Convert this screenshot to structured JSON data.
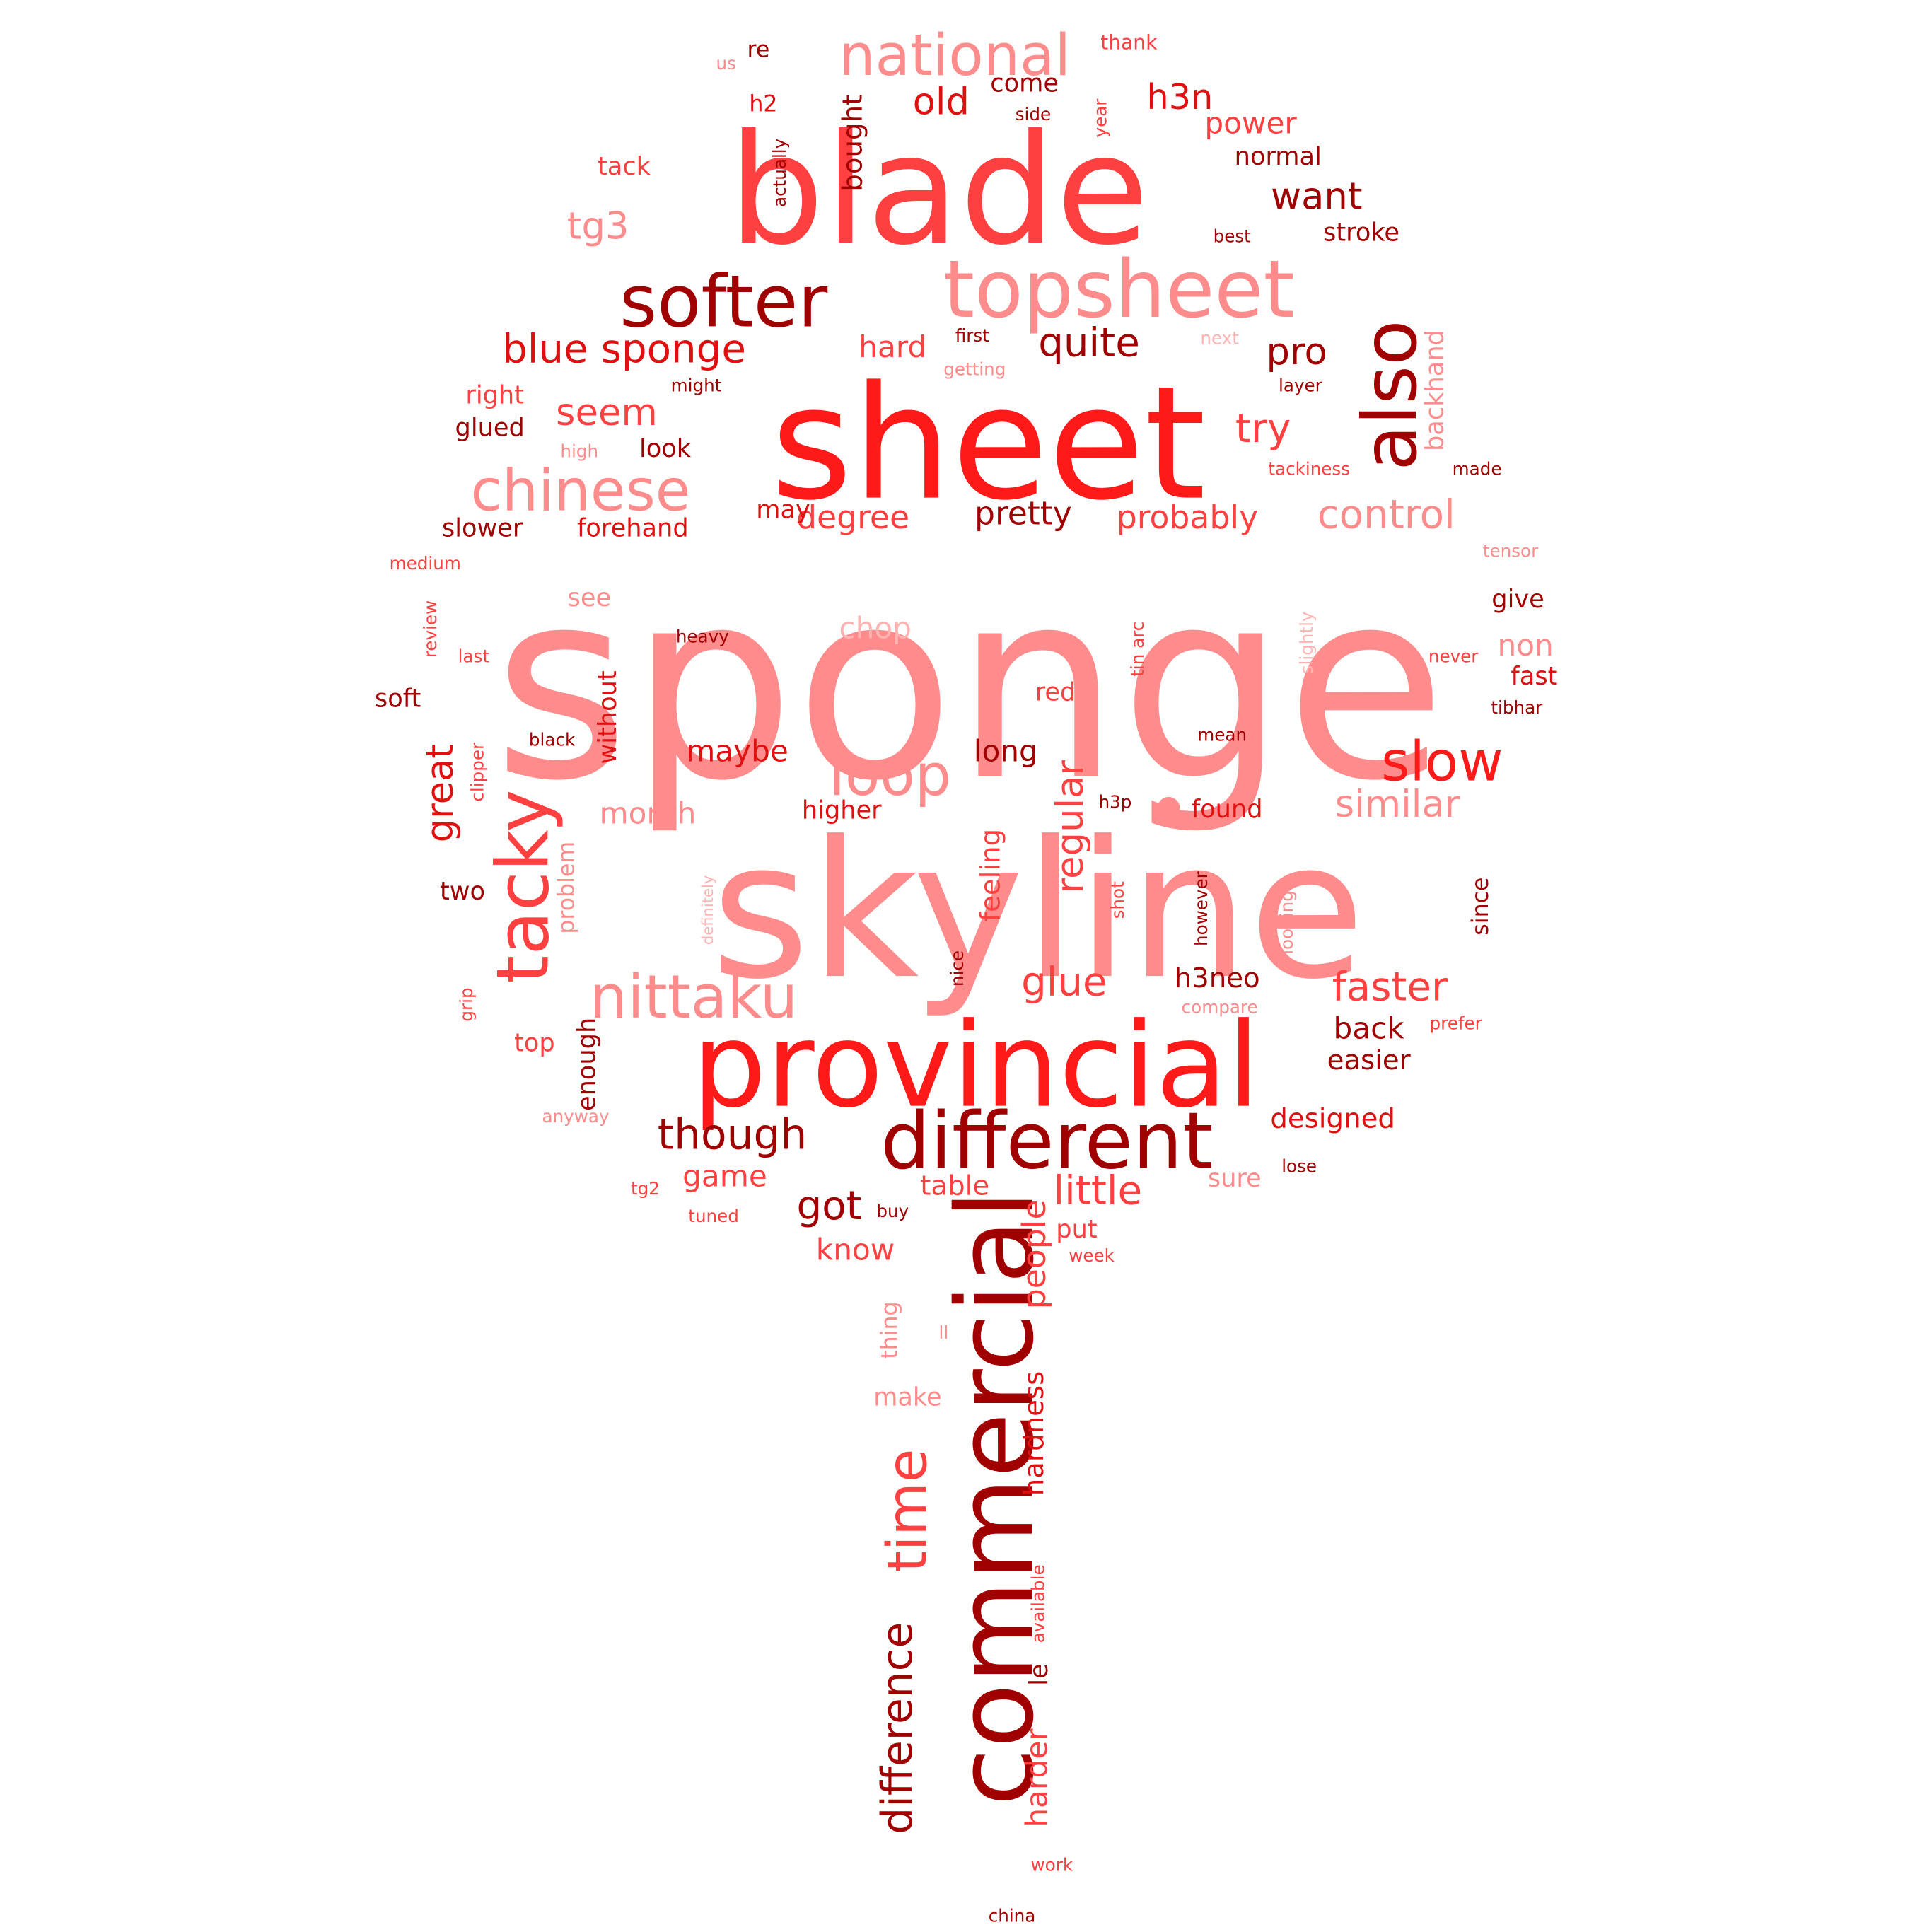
{
  "palette": {
    "dark": "#a00000",
    "mid": "#e01010",
    "bright": "#ff1a1a",
    "warm": "#ff4040",
    "light": "#ff8c8c",
    "pale": "#ffb4b4",
    "background": "#ffffff"
  },
  "words": [
    {
      "text": "sponge",
      "color": "light"
    },
    {
      "text": "skyline",
      "color": "light"
    },
    {
      "text": "sheet",
      "color": "bright"
    },
    {
      "text": "blade",
      "color": "warm"
    },
    {
      "text": "provincial",
      "color": "bright"
    },
    {
      "text": "commercial",
      "color": "dark"
    },
    {
      "text": "topsheet",
      "color": "light"
    },
    {
      "text": "different",
      "color": "dark"
    },
    {
      "text": "softer",
      "color": "dark"
    },
    {
      "text": "also",
      "color": "dark"
    },
    {
      "text": "national",
      "color": "light"
    },
    {
      "text": "tacky",
      "color": "warm"
    },
    {
      "text": "nittaku",
      "color": "light"
    },
    {
      "text": "chinese",
      "color": "light"
    },
    {
      "text": "loop",
      "color": "light"
    },
    {
      "text": "slow",
      "color": "bright"
    },
    {
      "text": "time",
      "color": "warm"
    },
    {
      "text": "blue sponge",
      "color": "mid"
    },
    {
      "text": "difference",
      "color": "dark"
    },
    {
      "text": "control",
      "color": "light"
    },
    {
      "text": "faster",
      "color": "warm"
    },
    {
      "text": "though",
      "color": "dark"
    },
    {
      "text": "want",
      "color": "dark"
    },
    {
      "text": "quite",
      "color": "dark"
    },
    {
      "text": "little",
      "color": "warm"
    },
    {
      "text": "similar",
      "color": "light"
    },
    {
      "text": "seem",
      "color": "warm"
    },
    {
      "text": "pro",
      "color": "dark"
    },
    {
      "text": "try",
      "color": "warm"
    },
    {
      "text": "tg3",
      "color": "light"
    },
    {
      "text": "old",
      "color": "mid"
    },
    {
      "text": "h3n",
      "color": "mid"
    },
    {
      "text": "glue",
      "color": "warm"
    },
    {
      "text": "great",
      "color": "mid"
    },
    {
      "text": "regular",
      "color": "warm"
    },
    {
      "text": "got",
      "color": "dark"
    },
    {
      "text": "people",
      "color": "warm"
    },
    {
      "text": "hardness",
      "color": "mid"
    },
    {
      "text": "backhand",
      "color": "light"
    },
    {
      "text": "probably",
      "color": "warm"
    },
    {
      "text": "pretty",
      "color": "dark"
    },
    {
      "text": "degree",
      "color": "warm"
    },
    {
      "text": "maybe",
      "color": "mid"
    },
    {
      "text": "long",
      "color": "dark"
    },
    {
      "text": "month",
      "color": "light"
    },
    {
      "text": "bought",
      "color": "dark"
    },
    {
      "text": "power",
      "color": "warm"
    },
    {
      "text": "chop",
      "color": "pale"
    },
    {
      "text": "non",
      "color": "light"
    },
    {
      "text": "h3neo",
      "color": "dark"
    },
    {
      "text": "back",
      "color": "dark"
    },
    {
      "text": "harder",
      "color": "warm"
    },
    {
      "text": "hard",
      "color": "warm"
    },
    {
      "text": "know",
      "color": "warm"
    },
    {
      "text": "game",
      "color": "warm"
    },
    {
      "text": "table",
      "color": "warm"
    },
    {
      "text": "designed",
      "color": "mid"
    },
    {
      "text": "easier",
      "color": "dark"
    },
    {
      "text": "without",
      "color": "mid"
    },
    {
      "text": "forehand",
      "color": "mid"
    },
    {
      "text": "slower",
      "color": "dark"
    },
    {
      "text": "higher",
      "color": "mid"
    },
    {
      "text": "found",
      "color": "mid"
    },
    {
      "text": "feeling",
      "color": "warm"
    },
    {
      "text": "stroke",
      "color": "dark"
    },
    {
      "text": "normal",
      "color": "dark"
    },
    {
      "text": "tack",
      "color": "warm"
    },
    {
      "text": "come",
      "color": "dark"
    },
    {
      "text": "glued",
      "color": "dark"
    },
    {
      "text": "right",
      "color": "warm"
    },
    {
      "text": "look",
      "color": "dark"
    },
    {
      "text": "may",
      "color": "mid"
    },
    {
      "text": "see",
      "color": "light"
    },
    {
      "text": "give",
      "color": "dark"
    },
    {
      "text": "fast",
      "color": "mid"
    },
    {
      "text": "soft",
      "color": "dark"
    },
    {
      "text": "red",
      "color": "warm"
    },
    {
      "text": "two",
      "color": "dark"
    },
    {
      "text": "top",
      "color": "warm"
    },
    {
      "text": "sure",
      "color": "light"
    },
    {
      "text": "put",
      "color": "warm"
    },
    {
      "text": "enough",
      "color": "dark"
    },
    {
      "text": "problem",
      "color": "light"
    },
    {
      "text": "since",
      "color": "dark"
    },
    {
      "text": "thing",
      "color": "light"
    },
    {
      "text": "make",
      "color": "light"
    },
    {
      "text": "le",
      "color": "dark"
    },
    {
      "text": "re",
      "color": "dark"
    },
    {
      "text": "h2",
      "color": "mid"
    },
    {
      "text": "thank",
      "color": "warm"
    },
    {
      "text": "us",
      "color": "light"
    },
    {
      "text": "side",
      "color": "dark"
    },
    {
      "text": "year",
      "color": "warm"
    },
    {
      "text": "actually",
      "color": "dark"
    },
    {
      "text": "best",
      "color": "dark"
    },
    {
      "text": "first",
      "color": "dark"
    },
    {
      "text": "next",
      "color": "pale"
    },
    {
      "text": "getting",
      "color": "light"
    },
    {
      "text": "might",
      "color": "dark"
    },
    {
      "text": "layer",
      "color": "dark"
    },
    {
      "text": "high",
      "color": "light"
    },
    {
      "text": "tackiness",
      "color": "warm"
    },
    {
      "text": "made",
      "color": "dark"
    },
    {
      "text": "tensor",
      "color": "light"
    },
    {
      "text": "medium",
      "color": "warm"
    },
    {
      "text": "review",
      "color": "warm"
    },
    {
      "text": "last",
      "color": "warm"
    },
    {
      "text": "heavy",
      "color": "dark"
    },
    {
      "text": "tin arc",
      "color": "warm"
    },
    {
      "text": "slightly",
      "color": "pale"
    },
    {
      "text": "never",
      "color": "warm"
    },
    {
      "text": "tibhar",
      "color": "dark"
    },
    {
      "text": "black",
      "color": "dark"
    },
    {
      "text": "mean",
      "color": "dark"
    },
    {
      "text": "clipper",
      "color": "warm"
    },
    {
      "text": "h3p",
      "color": "dark"
    },
    {
      "text": "definitely",
      "color": "pale"
    },
    {
      "text": "shot",
      "color": "warm"
    },
    {
      "text": "however",
      "color": "dark"
    },
    {
      "text": "looping",
      "color": "light"
    },
    {
      "text": "nice",
      "color": "dark"
    },
    {
      "text": "compare",
      "color": "light"
    },
    {
      "text": "prefer",
      "color": "warm"
    },
    {
      "text": "grip",
      "color": "warm"
    },
    {
      "text": "anyway",
      "color": "light"
    },
    {
      "text": "lose",
      "color": "dark"
    },
    {
      "text": "tg2",
      "color": "warm"
    },
    {
      "text": "tuned",
      "color": "warm"
    },
    {
      "text": "buy",
      "color": "dark"
    },
    {
      "text": "week",
      "color": "warm"
    },
    {
      "text": "ll",
      "color": "light"
    },
    {
      "text": "available",
      "color": "warm"
    },
    {
      "text": "work",
      "color": "warm"
    },
    {
      "text": "china",
      "color": "dark"
    }
  ]
}
